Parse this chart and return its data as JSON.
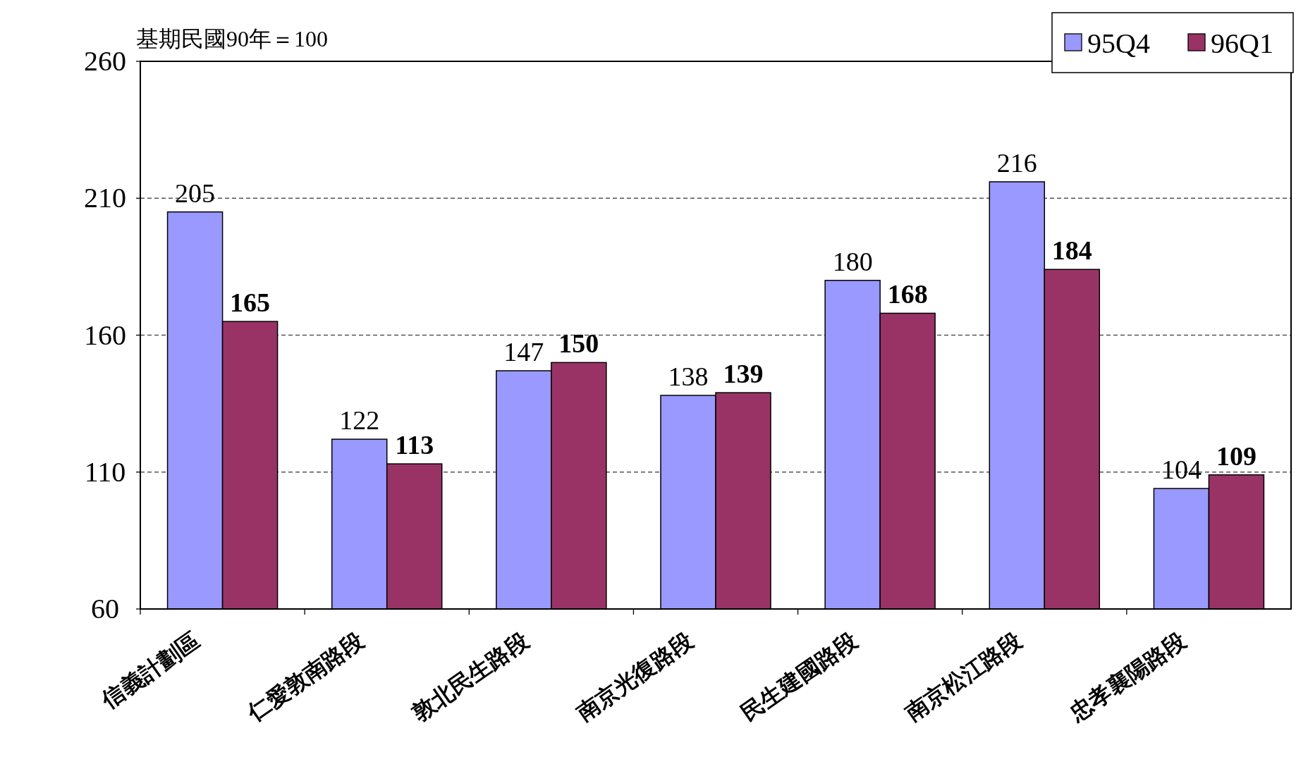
{
  "chart_data": {
    "type": "bar",
    "ylabel": "基期民國90年＝100",
    "categories": [
      "信義計劃區",
      "仁愛敦南路段",
      "敦北民生路段",
      "南京光復路段",
      "民生建國路段",
      "南京松江路段",
      "忠孝襄陽路段"
    ],
    "series": [
      {
        "name": "95Q4",
        "color": "#9999ff",
        "values": [
          205,
          122,
          147,
          138,
          180,
          216,
          104
        ]
      },
      {
        "name": "96Q1",
        "color": "#993366",
        "values": [
          165,
          113,
          150,
          139,
          168,
          184,
          109
        ]
      }
    ],
    "ylim": [
      60,
      260
    ],
    "yticks": [
      60,
      110,
      160,
      210,
      260
    ],
    "grid": "y",
    "legend": "top right",
    "data_labels": true
  }
}
